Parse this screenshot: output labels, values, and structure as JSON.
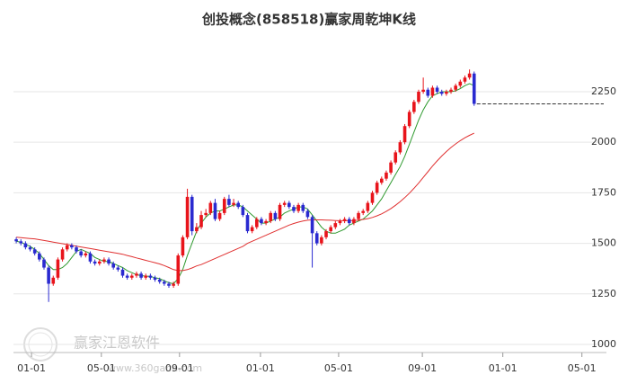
{
  "chart_data": {
    "type": "candlestick",
    "title": "创投概念(858518)赢家周乾坤K线",
    "watermark": "赢家江恩软件",
    "watermark_url": "www.360gann.com",
    "up_color": "#e8141b",
    "down_color": "#2a2ad0",
    "ylim": [
      970,
      2500
    ],
    "yticks": [
      1000,
      1250,
      1500,
      1750,
      2000,
      2250
    ],
    "grid": true,
    "xlim": [
      -0.6,
      127.6
    ],
    "xticks": [
      {
        "value": 3.3,
        "label": "01-01"
      },
      {
        "value": 18.4,
        "label": "05-01"
      },
      {
        "value": 35.3,
        "label": "09-01"
      },
      {
        "value": 52.8,
        "label": "01-01"
      },
      {
        "value": 69.7,
        "label": "05-01"
      },
      {
        "value": 87.8,
        "label": "09-01"
      },
      {
        "value": 105.2,
        "label": "01-01"
      },
      {
        "value": 122.3,
        "label": "05-01"
      }
    ],
    "open": [
      1520,
      1510,
      1500,
      1480,
      1470,
      1450,
      1420,
      1380,
      1300,
      1330,
      1420,
      1470,
      1490,
      1480,
      1460,
      1440,
      1450,
      1410,
      1400,
      1410,
      1420,
      1400,
      1380,
      1370,
      1340,
      1330,
      1340,
      1350,
      1330,
      1340,
      1330,
      1320,
      1310,
      1300,
      1290,
      1300,
      1440,
      1530,
      1730,
      1560,
      1580,
      1640,
      1650,
      1700,
      1620,
      1650,
      1720,
      1690,
      1700,
      1680,
      1640,
      1560,
      1580,
      1620,
      1600,
      1610,
      1650,
      1620,
      1690,
      1700,
      1680,
      1660,
      1690,
      1660,
      1630,
      1550,
      1500,
      1530,
      1560,
      1580,
      1600,
      1610,
      1620,
      1600,
      1620,
      1650,
      1660,
      1700,
      1750,
      1800,
      1820,
      1850,
      1900,
      1950,
      2000,
      2080,
      2150,
      2200,
      2250,
      2260,
      2230,
      2270,
      2250,
      2240,
      2250,
      2260,
      2280,
      2300,
      2320,
      2340
    ],
    "high": [
      1530,
      1520,
      1510,
      1490,
      1480,
      1460,
      1430,
      1390,
      1340,
      1430,
      1480,
      1500,
      1500,
      1490,
      1470,
      1460,
      1460,
      1420,
      1420,
      1430,
      1430,
      1410,
      1390,
      1380,
      1350,
      1350,
      1360,
      1360,
      1350,
      1350,
      1340,
      1330,
      1320,
      1310,
      1310,
      1450,
      1540,
      1770,
      1740,
      1600,
      1660,
      1670,
      1710,
      1720,
      1660,
      1730,
      1740,
      1720,
      1710,
      1690,
      1650,
      1590,
      1630,
      1630,
      1620,
      1660,
      1660,
      1700,
      1710,
      1710,
      1690,
      1700,
      1700,
      1670,
      1640,
      1560,
      1540,
      1570,
      1590,
      1610,
      1620,
      1630,
      1630,
      1630,
      1660,
      1670,
      1710,
      1760,
      1810,
      1830,
      1860,
      1910,
      1960,
      2010,
      2090,
      2160,
      2210,
      2260,
      2320,
      2270,
      2280,
      2280,
      2260,
      2260,
      2270,
      2290,
      2310,
      2330,
      2360,
      2350
    ],
    "low": [
      1500,
      1490,
      1470,
      1460,
      1440,
      1410,
      1370,
      1210,
      1290,
      1320,
      1410,
      1460,
      1470,
      1450,
      1430,
      1430,
      1400,
      1390,
      1390,
      1400,
      1390,
      1370,
      1360,
      1330,
      1320,
      1320,
      1330,
      1320,
      1320,
      1320,
      1310,
      1300,
      1290,
      1280,
      1280,
      1290,
      1430,
      1520,
      1540,
      1550,
      1570,
      1630,
      1640,
      1610,
      1610,
      1640,
      1680,
      1680,
      1670,
      1630,
      1550,
      1550,
      1570,
      1590,
      1590,
      1600,
      1610,
      1610,
      1680,
      1670,
      1650,
      1650,
      1650,
      1620,
      1380,
      1490,
      1490,
      1520,
      1550,
      1570,
      1590,
      1600,
      1590,
      1590,
      1610,
      1640,
      1650,
      1690,
      1740,
      1790,
      1810,
      1840,
      1890,
      1940,
      1990,
      2070,
      2140,
      2190,
      2240,
      2220,
      2220,
      2240,
      2230,
      2230,
      2240,
      2250,
      2270,
      2290,
      2310,
      2180
    ],
    "close": [
      1510,
      1500,
      1480,
      1470,
      1450,
      1420,
      1380,
      1300,
      1330,
      1420,
      1470,
      1490,
      1480,
      1460,
      1440,
      1450,
      1410,
      1400,
      1410,
      1420,
      1400,
      1380,
      1370,
      1340,
      1330,
      1340,
      1350,
      1330,
      1340,
      1330,
      1320,
      1310,
      1300,
      1290,
      1300,
      1440,
      1530,
      1730,
      1560,
      1580,
      1640,
      1650,
      1700,
      1620,
      1650,
      1720,
      1690,
      1700,
      1680,
      1640,
      1560,
      1580,
      1620,
      1600,
      1610,
      1650,
      1620,
      1690,
      1700,
      1680,
      1660,
      1690,
      1660,
      1630,
      1550,
      1500,
      1530,
      1560,
      1580,
      1600,
      1610,
      1620,
      1600,
      1620,
      1650,
      1660,
      1700,
      1750,
      1800,
      1820,
      1850,
      1900,
      1950,
      2000,
      2080,
      2150,
      2200,
      2250,
      2260,
      2230,
      2270,
      2250,
      2240,
      2250,
      2260,
      2280,
      2300,
      2320,
      2340,
      2190
    ],
    "lines": [
      {
        "color": "#2f9a2f",
        "values": [
          1510,
          1505,
          1495,
          1485,
          1470,
          1450,
          1420,
          1390,
          1370,
          1370,
          1380,
          1400,
          1430,
          1460,
          1470,
          1460,
          1450,
          1430,
          1420,
          1410,
          1410,
          1400,
          1390,
          1380,
          1365,
          1355,
          1345,
          1340,
          1338,
          1336,
          1330,
          1325,
          1315,
          1305,
          1300,
          1325,
          1370,
          1440,
          1500,
          1560,
          1600,
          1630,
          1650,
          1660,
          1660,
          1670,
          1680,
          1690,
          1690,
          1680,
          1660,
          1640,
          1620,
          1600,
          1600,
          1610,
          1620,
          1630,
          1650,
          1660,
          1670,
          1680,
          1680,
          1670,
          1640,
          1610,
          1580,
          1560,
          1550,
          1550,
          1560,
          1570,
          1590,
          1600,
          1610,
          1620,
          1640,
          1660,
          1690,
          1720,
          1760,
          1800,
          1840,
          1880,
          1930,
          1990,
          2050,
          2110,
          2160,
          2200,
          2230,
          2240,
          2250,
          2250,
          2250,
          2255,
          2265,
          2280,
          2290,
          2280
        ]
      },
      {
        "color": "#e03030",
        "values": [
          1530,
          1528,
          1526,
          1524,
          1522,
          1518,
          1514,
          1510,
          1506,
          1502,
          1498,
          1494,
          1490,
          1486,
          1482,
          1478,
          1474,
          1470,
          1466,
          1462,
          1458,
          1454,
          1450,
          1446,
          1440,
          1434,
          1428,
          1422,
          1416,
          1410,
          1404,
          1398,
          1390,
          1380,
          1370,
          1365,
          1365,
          1370,
          1378,
          1388,
          1395,
          1405,
          1415,
          1425,
          1435,
          1445,
          1455,
          1465,
          1475,
          1485,
          1500,
          1510,
          1520,
          1530,
          1540,
          1550,
          1560,
          1570,
          1580,
          1590,
          1598,
          1605,
          1610,
          1614,
          1616,
          1616,
          1616,
          1615,
          1614,
          1613,
          1612,
          1612,
          1612,
          1613,
          1615,
          1618,
          1622,
          1628,
          1636,
          1646,
          1658,
          1672,
          1688,
          1706,
          1726,
          1748,
          1772,
          1798,
          1826,
          1854,
          1882,
          1908,
          1932,
          1954,
          1974,
          1992,
          2008,
          2022,
          2034,
          2045
        ]
      }
    ]
  }
}
